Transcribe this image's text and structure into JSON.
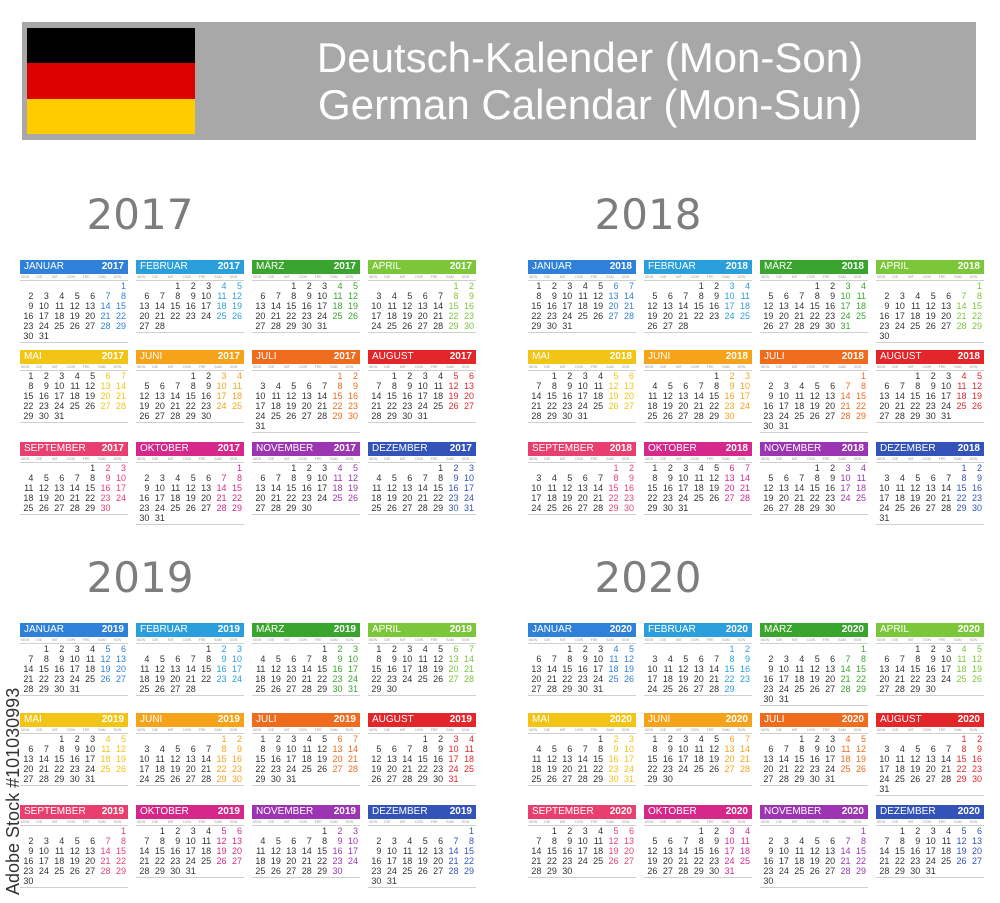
{
  "header": {
    "title_line1": "Deutsch-Kalender (Mon-Son)",
    "title_line2": "German Calendar (Mon-Sun)",
    "flag_colors": [
      "#000000",
      "#dd0000",
      "#ffcc00"
    ]
  },
  "weekdays": [
    "MON",
    "DIE",
    "MIT",
    "DON",
    "FRE",
    "SAM",
    "SON"
  ],
  "months": [
    {
      "name": "JANUAR",
      "color": "#2f80d8"
    },
    {
      "name": "FEBRUAR",
      "color": "#2a9fdc"
    },
    {
      "name": "MÄRZ",
      "color": "#3aa52e"
    },
    {
      "name": "APRIL",
      "color": "#7cc63a"
    },
    {
      "name": "MAI",
      "color": "#f2c416"
    },
    {
      "name": "JUNI",
      "color": "#f5a31a"
    },
    {
      "name": "JULI",
      "color": "#ef6b1d"
    },
    {
      "name": "AUGUST",
      "color": "#e2262a"
    },
    {
      "name": "SEPTEMBER",
      "color": "#e83f6e"
    },
    {
      "name": "OKTOBER",
      "color": "#d6288a"
    },
    {
      "name": "NOVEMBER",
      "color": "#9b35b2"
    },
    {
      "name": "DEZEMBER",
      "color": "#3453b8"
    }
  ],
  "years": [
    "2017",
    "2018",
    "2019",
    "2020"
  ],
  "watermark": {
    "brand": "Adobe Stock",
    "number": "#101030993"
  }
}
